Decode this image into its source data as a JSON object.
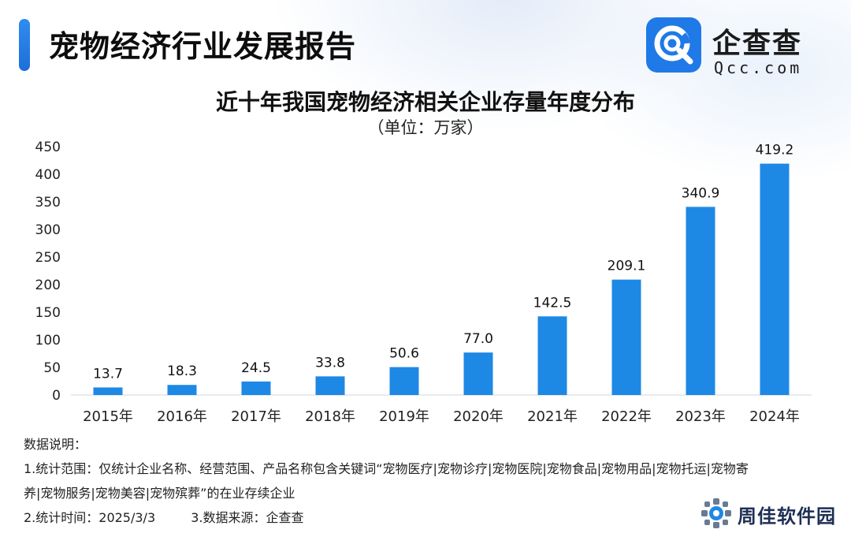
{
  "header": {
    "report_title": "宠物经济行业发展报告"
  },
  "logo": {
    "icon": "qcc-logo-icon",
    "name_cn": "企查查",
    "name_en": "Qcc.com",
    "brand_color": "#1f7ae8"
  },
  "chart_data": {
    "type": "bar",
    "title": "近十年我国宠物经济相关企业存量年度分布",
    "subtitle": "（单位：万家）",
    "categories": [
      "2015年",
      "2016年",
      "2017年",
      "2018年",
      "2019年",
      "2020年",
      "2021年",
      "2022年",
      "2023年",
      "2024年"
    ],
    "values": [
      13.7,
      18.3,
      24.5,
      33.8,
      50.6,
      77.0,
      142.5,
      209.1,
      340.9,
      419.2
    ],
    "value_labels": [
      "13.7",
      "18.3",
      "24.5",
      "33.8",
      "50.6",
      "77.0",
      "142.5",
      "209.1",
      "340.9",
      "419.2"
    ],
    "ylim": [
      0,
      450
    ],
    "yticks": [
      "0",
      "50",
      "100",
      "150",
      "200",
      "250",
      "300",
      "350",
      "400",
      "450"
    ],
    "xlabel": "",
    "ylabel": "",
    "grid": false,
    "bar_color": "#1e88e5"
  },
  "notes": {
    "heading": "数据说明：",
    "line1": "1.统计范围：仅统计企业名称、经营范围、产品名称包含关键词“宠物医疗|宠物诊疗|宠物医院|宠物食品|宠物用品|宠物托运|宠物寄",
    "line2": "养|宠物服务|宠物美容|宠物殡葬”的在业存续企业",
    "stat_time": "2.统计时间：2025/3/3",
    "source": "3.数据来源：企查查"
  },
  "watermark": {
    "icon": "gear-puzzle-icon",
    "text": "周佳软件园"
  }
}
